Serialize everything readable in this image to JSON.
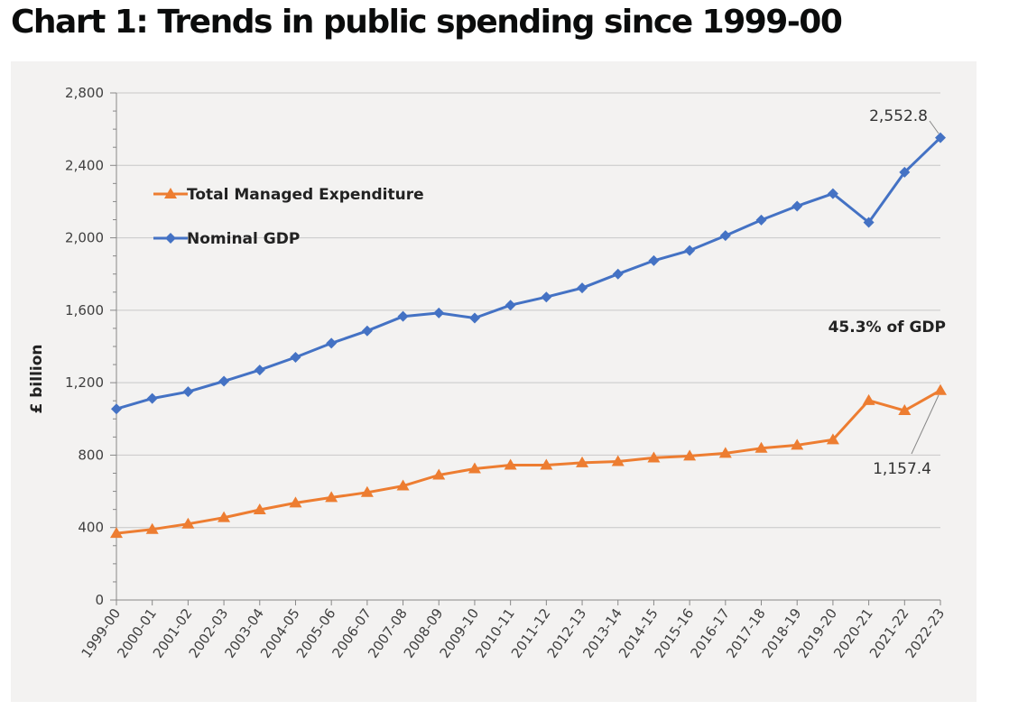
{
  "chart_data": {
    "type": "line",
    "title": "Chart 1: Trends in public spending since 1999-00",
    "xlabel": "",
    "ylabel": "£ billion",
    "ylim": [
      0,
      2800
    ],
    "yticks": [
      0,
      400,
      800,
      1200,
      1600,
      2000,
      2400,
      2800
    ],
    "ytick_labels": [
      "0",
      "400",
      "800",
      "1,200",
      "1,600",
      "2,000",
      "2,400",
      "2,800"
    ],
    "grid": true,
    "legend_position": "top-left",
    "categories": [
      "1999-00",
      "2000-01",
      "2001-02",
      "2002-03",
      "2003-04",
      "2004-05",
      "2005-06",
      "2006-07",
      "2007-08",
      "2008-09",
      "2009-10",
      "2010-11",
      "2011-12",
      "2012-13",
      "2013-14",
      "2014-15",
      "2015-16",
      "2016-17",
      "2017-18",
      "2018-19",
      "2019-20",
      "2020-21",
      "2021-22",
      "2022-23"
    ],
    "series": [
      {
        "name": "Total Managed Expenditure",
        "color": "#ed7d31",
        "marker": "triangle",
        "values": [
          368,
          390,
          420,
          455,
          498,
          536,
          566,
          594,
          630,
          690,
          725,
          745,
          745,
          758,
          765,
          785,
          795,
          810,
          838,
          855,
          885,
          1102,
          1046,
          1157.4
        ]
      },
      {
        "name": "Nominal GDP",
        "color": "#4472c4",
        "marker": "diamond",
        "values": [
          1055,
          1113,
          1150,
          1208,
          1270,
          1340,
          1418,
          1486,
          1566,
          1585,
          1557,
          1628,
          1673,
          1723,
          1800,
          1874,
          1930,
          2012,
          2098,
          2175,
          2244,
          2085,
          2362,
          2552.8
        ]
      }
    ],
    "annotations": {
      "gdp_end": "2,552.8",
      "tme_end": "1,157.4",
      "share": "45.3% of GDP"
    }
  }
}
